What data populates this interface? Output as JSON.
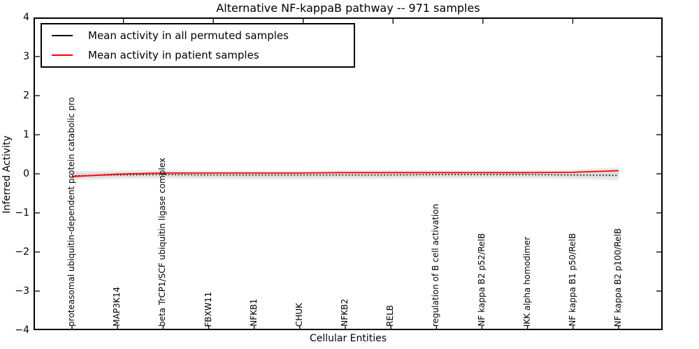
{
  "chart_data": {
    "type": "line",
    "title": "Alternative NF-kappaB pathway -- 971 samples",
    "xlabel": "Cellular Entities",
    "ylabel": "Inferred Activity",
    "ylim": [
      -4,
      4
    ],
    "yticks": [
      4,
      3,
      2,
      1,
      0,
      -1,
      -2,
      -3,
      -4
    ],
    "grid": false,
    "legend_position": "upper left",
    "categories": [
      "proteasomal ubiquitin-dependent protein catabolic pro",
      "MAP3K14",
      "beta TrCP1/SCF ubiquitin ligase complex",
      "FBXW11",
      "NFKB1",
      "CHUK",
      "NFKB2",
      "RELB",
      "regulation of B cell activation",
      "NF kappa B2 p52/RelB",
      "IKK alpha homodimer",
      "NF kappa B1 p50/RelB",
      "NF kappa B2 p100/RelB"
    ],
    "series": [
      {
        "name": "Mean activity in all permuted samples",
        "color": "#000000",
        "style": "dotted",
        "values": [
          -0.05,
          -0.03,
          -0.02,
          -0.03,
          -0.03,
          -0.03,
          -0.03,
          -0.03,
          -0.02,
          -0.02,
          -0.02,
          -0.03,
          -0.04
        ]
      },
      {
        "name": "Mean activity in patient samples",
        "color": "#ff0000",
        "style": "solid",
        "values": [
          -0.07,
          -0.01,
          0.02,
          0.02,
          0.02,
          0.02,
          0.03,
          0.03,
          0.03,
          0.03,
          0.03,
          0.04,
          0.08
        ]
      }
    ],
    "band": {
      "name": "permuted samples spread",
      "color": "#d9d9d9",
      "upper": [
        0.07,
        0.08,
        0.09,
        0.08,
        0.08,
        0.08,
        0.09,
        0.09,
        0.09,
        0.09,
        0.09,
        0.1,
        0.17
      ],
      "lower": [
        -0.16,
        -0.13,
        -0.12,
        -0.13,
        -0.14,
        -0.14,
        -0.13,
        -0.13,
        -0.12,
        -0.12,
        -0.12,
        -0.13,
        -0.17
      ]
    },
    "frame_color": "#000000"
  }
}
